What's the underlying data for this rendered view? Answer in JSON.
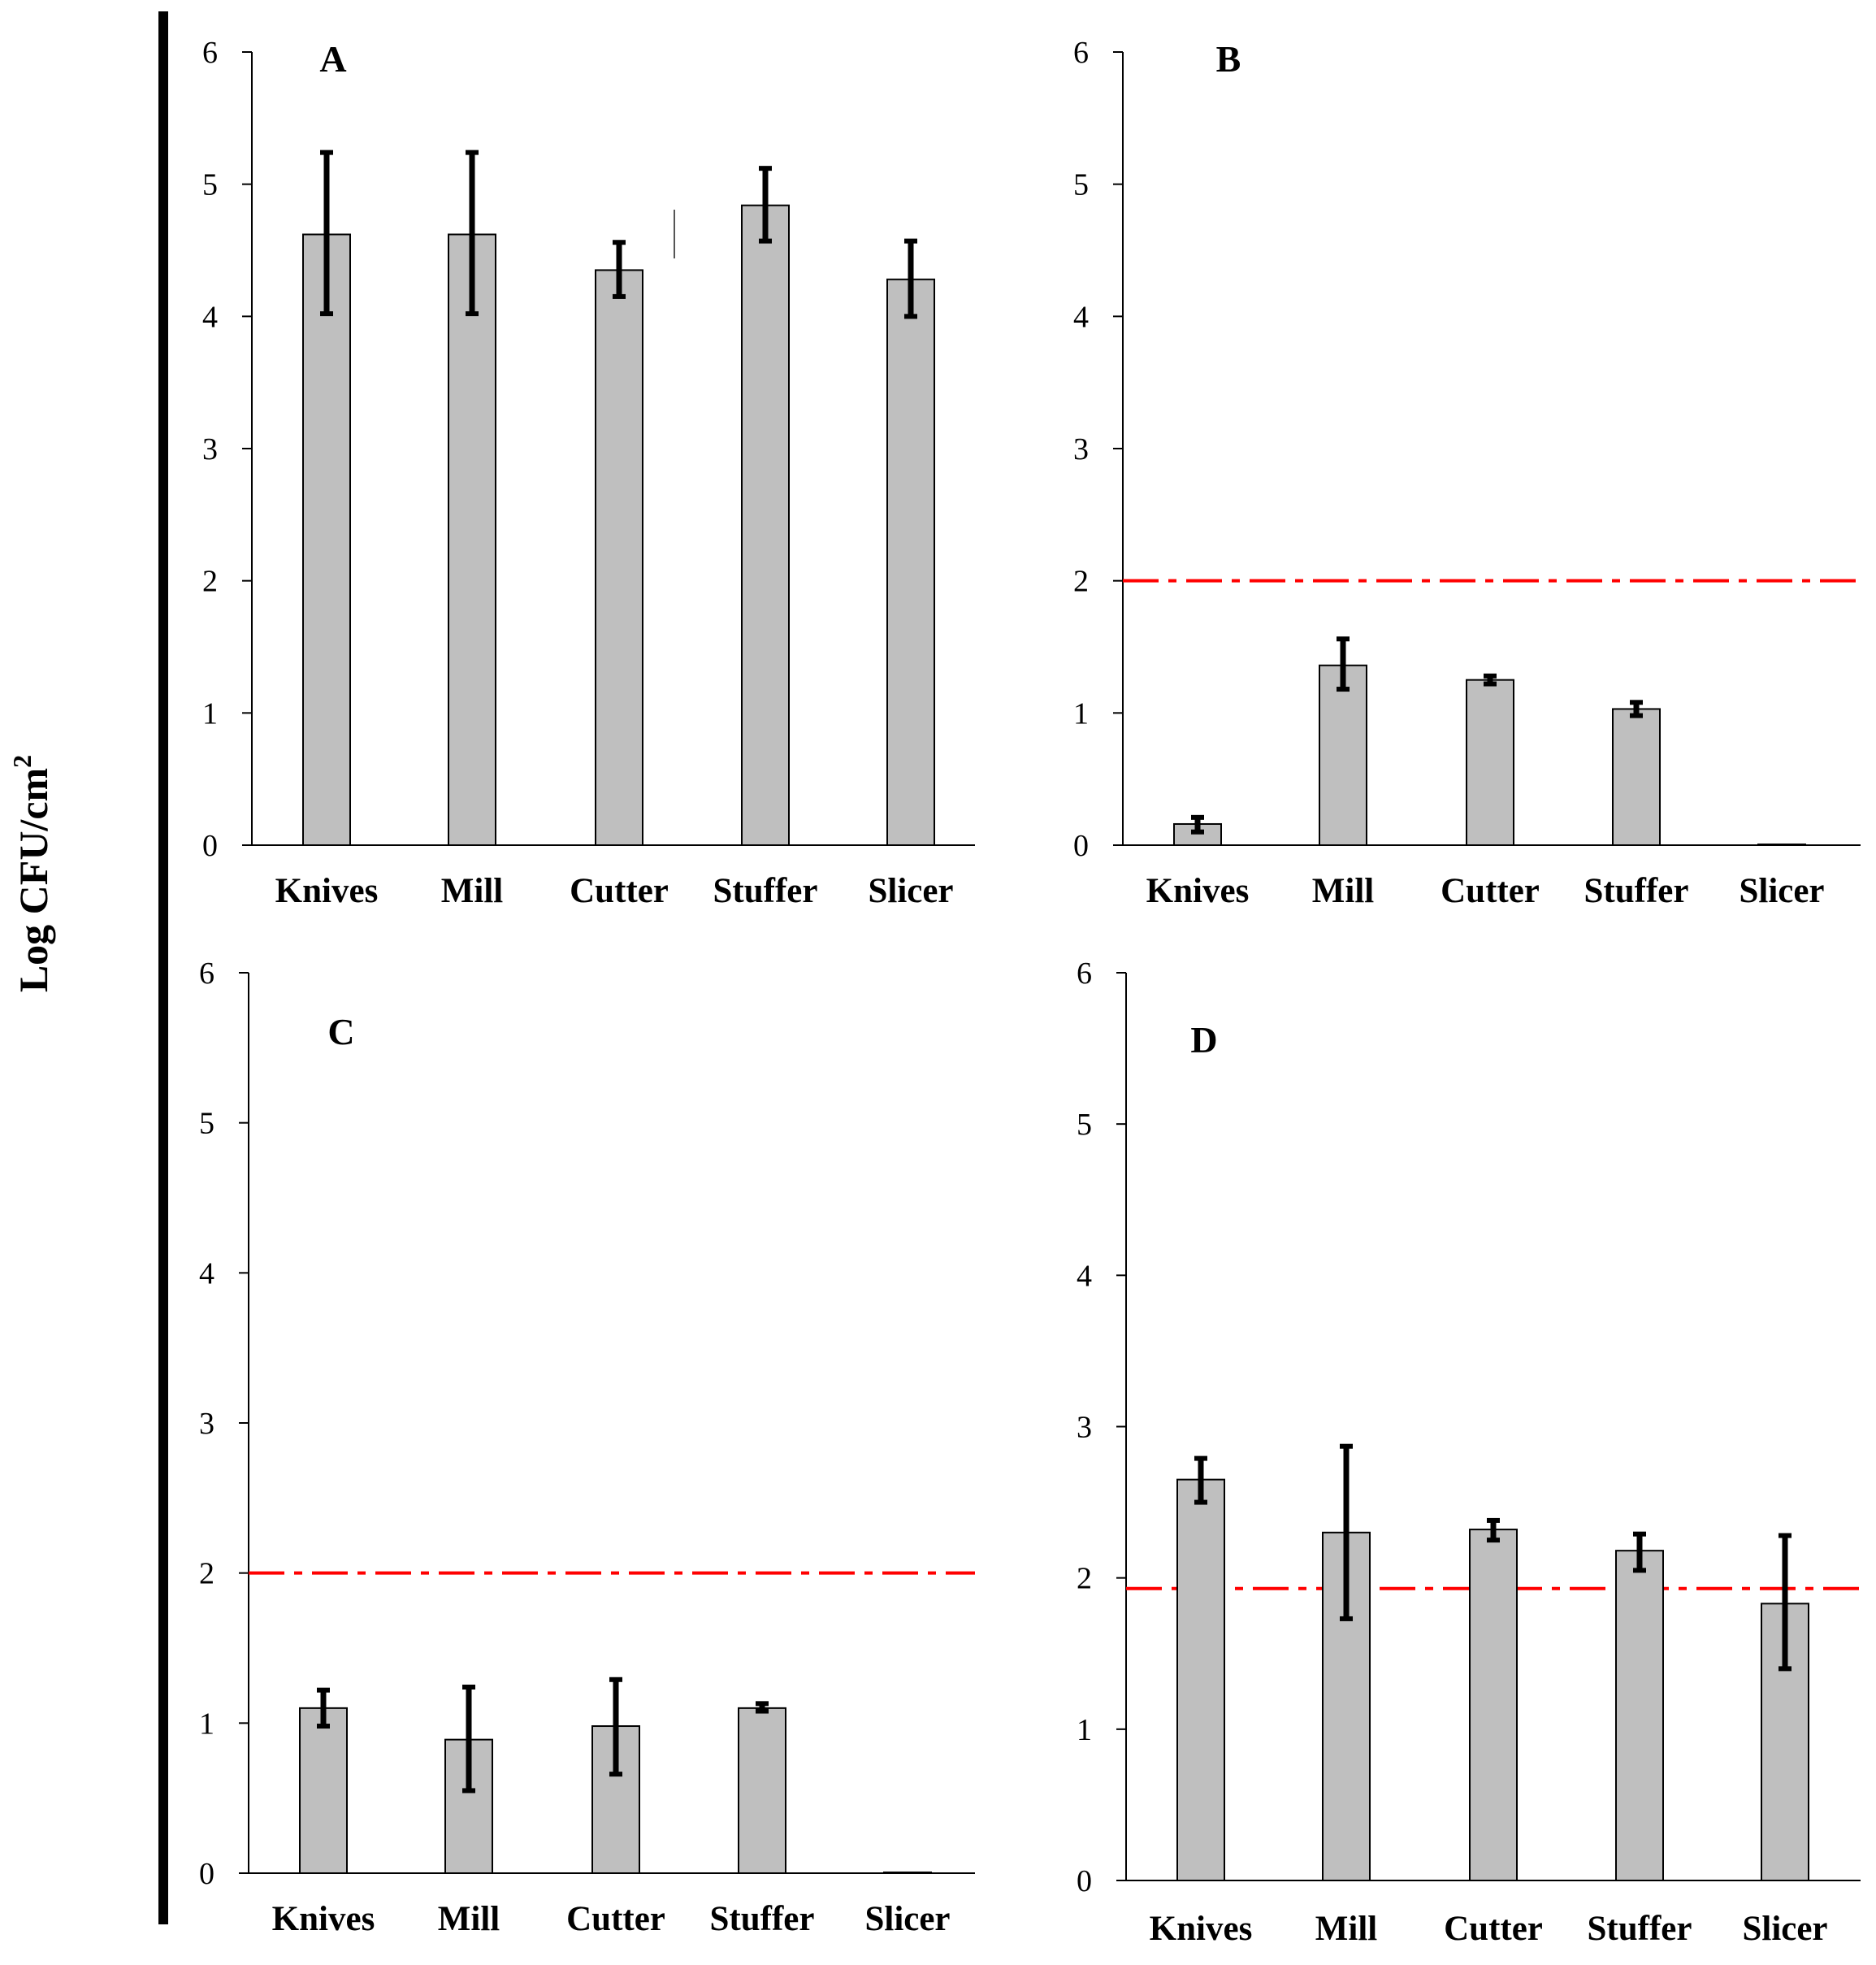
{
  "y_axis_label": "Log CFU/cm",
  "y_axis_label_superscript": "2",
  "chart_data": [
    {
      "type": "bar",
      "panel": "A",
      "categories": [
        "Knives",
        "Mill",
        "Cutter",
        "Stuffer",
        "Slicer"
      ],
      "values": [
        4.62,
        4.62,
        4.35,
        4.84,
        4.28
      ],
      "error_low": [
        4.02,
        4.02,
        4.15,
        4.57,
        4.0
      ],
      "error_high": [
        5.24,
        5.24,
        4.56,
        5.12,
        4.57
      ],
      "threshold": null,
      "ylim": [
        0,
        6
      ],
      "yticks": [
        0,
        1,
        2,
        3,
        4,
        5,
        6
      ],
      "bar_color": "#bfbfbf"
    },
    {
      "type": "bar",
      "panel": "B",
      "categories": [
        "Knives",
        "Mill",
        "Cutter",
        "Stuffer",
        "Slicer"
      ],
      "values": [
        0.16,
        1.36,
        1.25,
        1.03,
        0.0
      ],
      "error_low": [
        0.1,
        1.18,
        1.22,
        0.98,
        0.0
      ],
      "error_high": [
        0.21,
        1.56,
        1.28,
        1.08,
        0.0
      ],
      "threshold": 2.0,
      "ylim": [
        0,
        6
      ],
      "yticks": [
        0,
        1,
        2,
        3,
        4,
        5,
        6
      ],
      "bar_color": "#bfbfbf",
      "threshold_color": "#ff0000"
    },
    {
      "type": "bar",
      "panel": "C",
      "categories": [
        "Knives",
        "Mill",
        "Cutter",
        "Stuffer",
        "Slicer"
      ],
      "values": [
        1.1,
        0.89,
        0.98,
        1.1,
        0.0
      ],
      "error_low": [
        0.98,
        0.55,
        0.66,
        1.08,
        0.0
      ],
      "error_high": [
        1.22,
        1.24,
        1.29,
        1.13,
        0.0
      ],
      "threshold": 2.0,
      "ylim": [
        0,
        6
      ],
      "yticks": [
        0,
        1,
        2,
        3,
        4,
        5,
        6
      ],
      "bar_color": "#bfbfbf",
      "threshold_color": "#ff0000"
    },
    {
      "type": "bar",
      "panel": "D",
      "categories": [
        "Knives",
        "Mill",
        "Cutter",
        "Stuffer",
        "Slicer"
      ],
      "values": [
        2.65,
        2.3,
        2.32,
        2.18,
        1.83
      ],
      "error_low": [
        2.5,
        1.73,
        2.25,
        2.05,
        1.4
      ],
      "error_high": [
        2.79,
        2.87,
        2.38,
        2.29,
        2.28
      ],
      "threshold": 1.93,
      "ylim": [
        0,
        6
      ],
      "yticks": [
        0,
        1,
        2,
        3,
        4,
        5,
        6
      ],
      "bar_color": "#bfbfbf",
      "threshold_color": "#ff0000"
    }
  ]
}
